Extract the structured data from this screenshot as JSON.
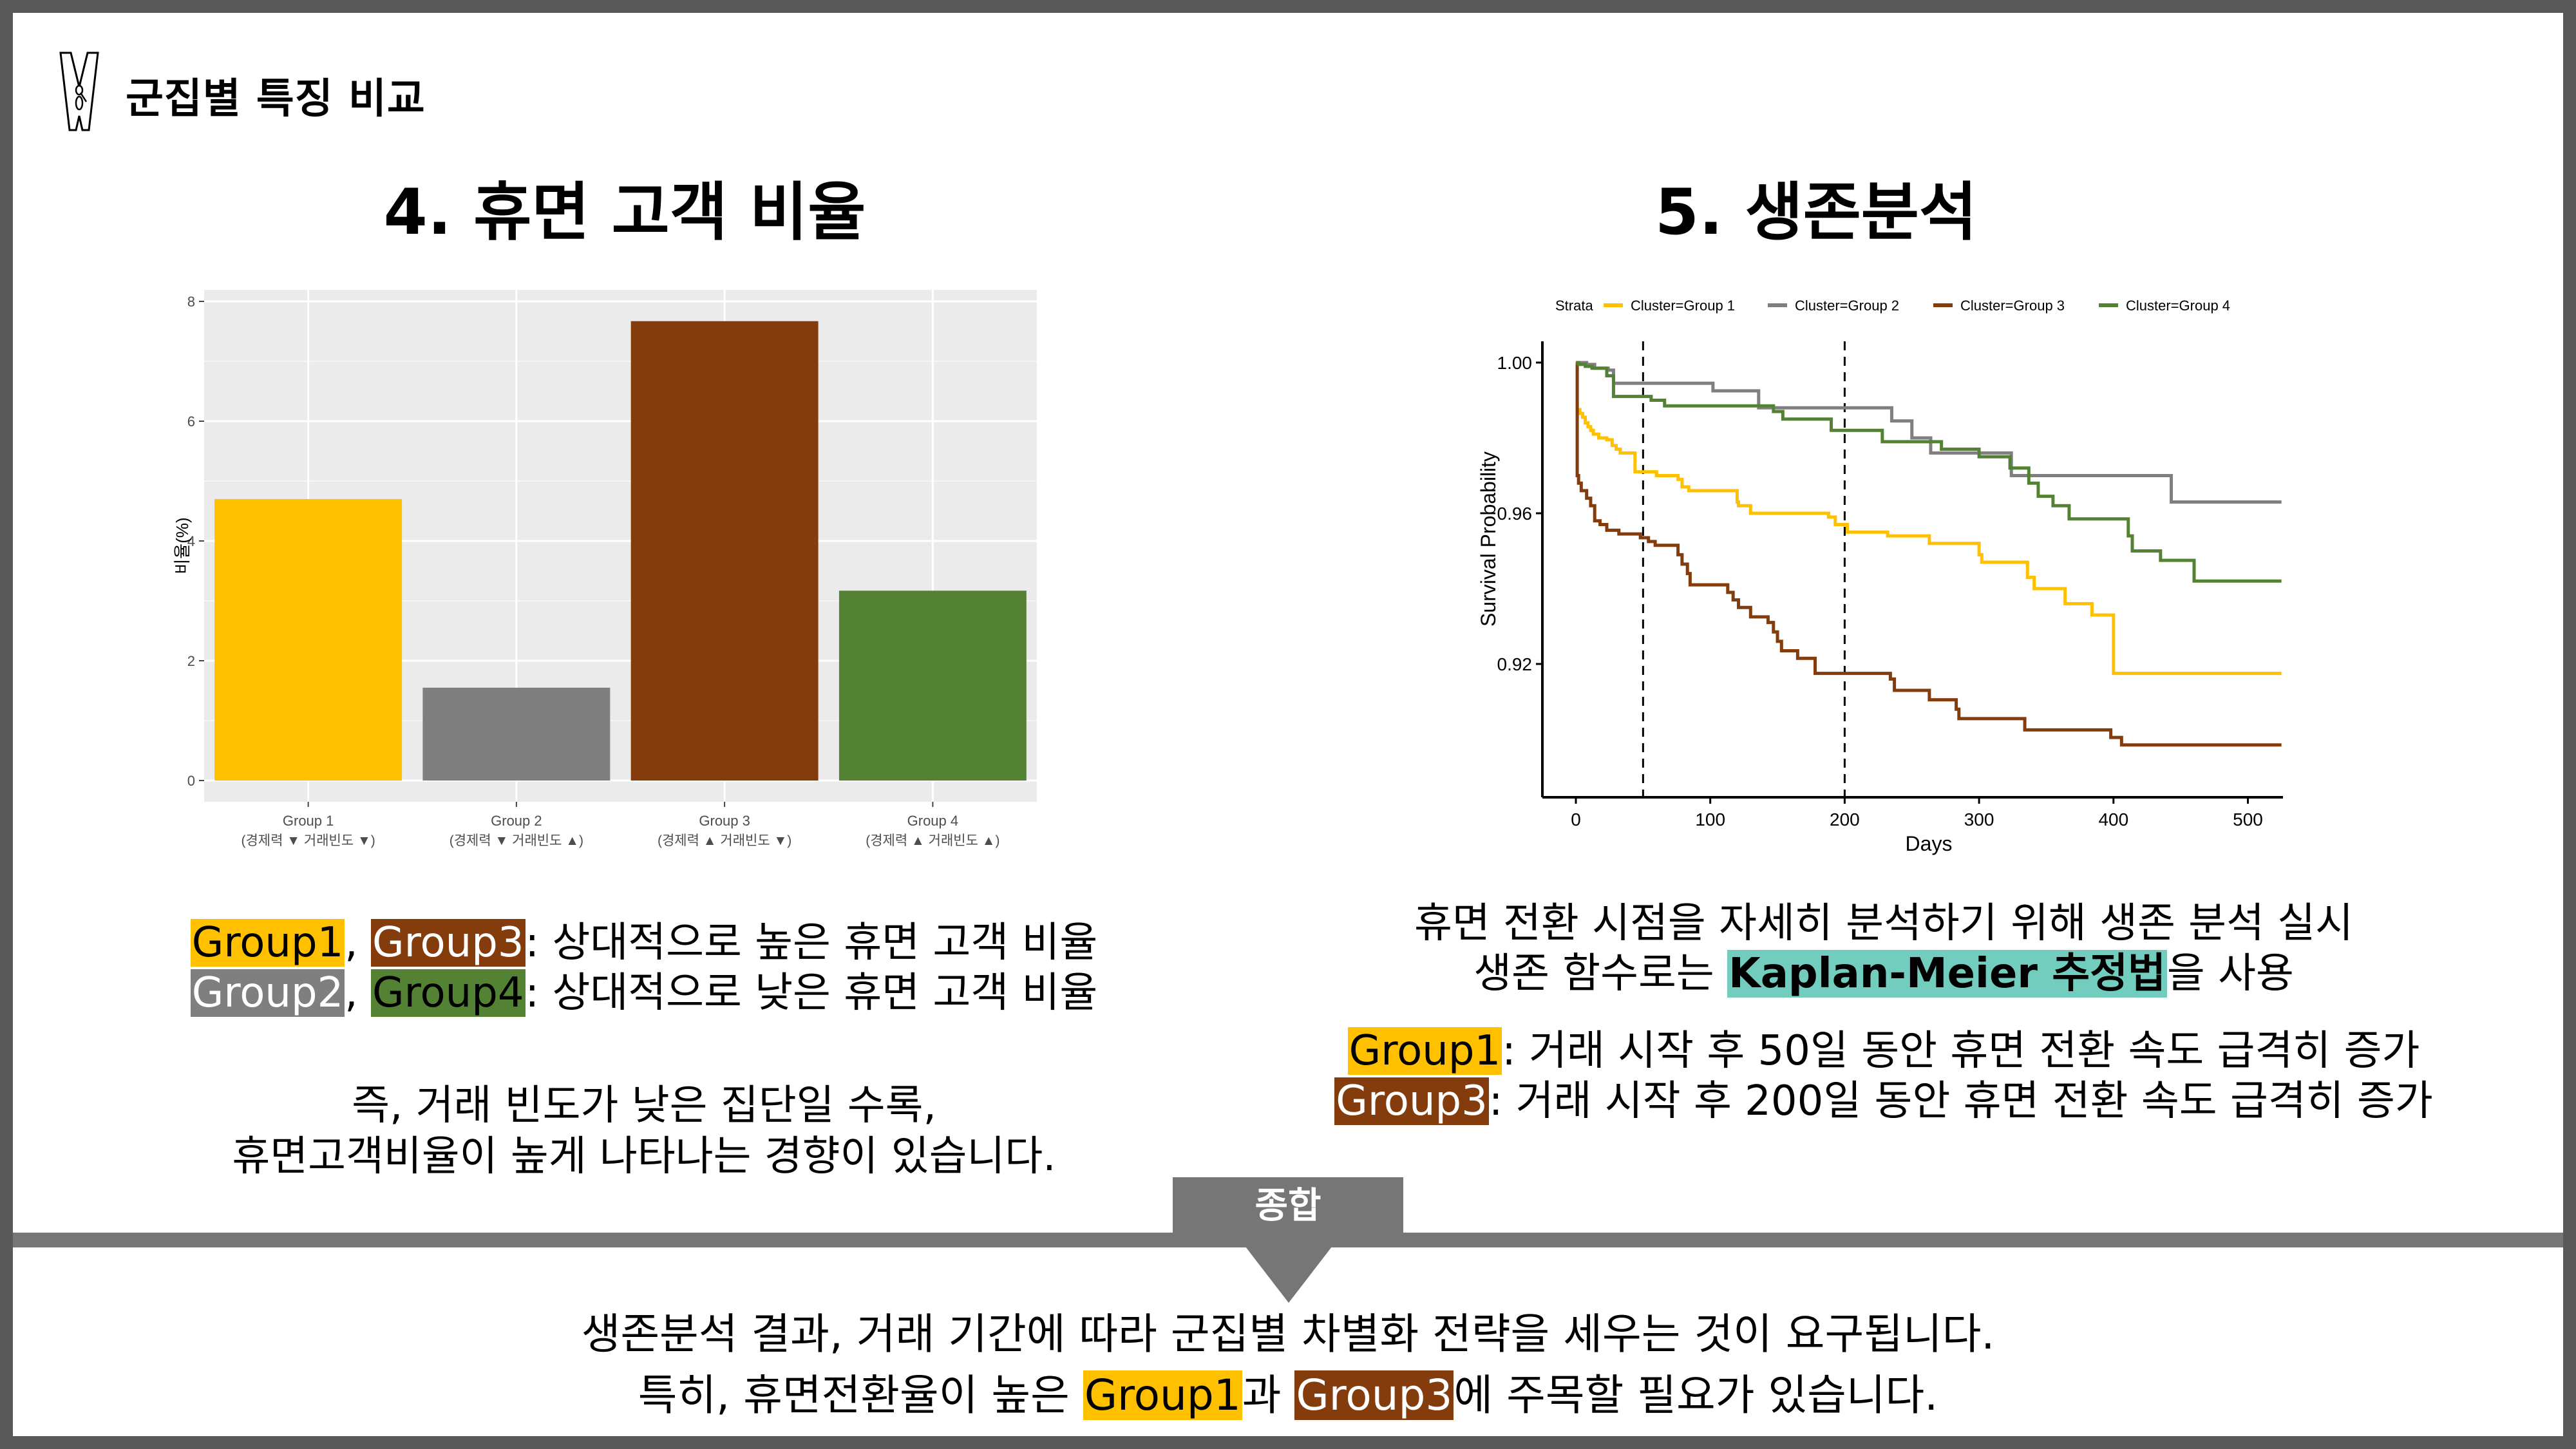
{
  "header": {
    "title": "군집별 특징 비교",
    "icon": "clothespin-icon"
  },
  "section4": {
    "title": "4. 휴면 고객 비율",
    "line1": {
      "g1": "Group1",
      "sep": ", ",
      "g3": "Group3",
      "text": ": 상대적으로 높은 휴면 고객 비율"
    },
    "line2": {
      "g2": "Group2",
      "sep": ", ",
      "g4": "Group4",
      "text": ": 상대적으로 낮은 휴면 고객 비율"
    },
    "summary1": "즉, 거래 빈도가 낮은 집단일 수록,",
    "summary2": "휴면고객비율이 높게 나타나는 경향이 있습니다."
  },
  "section5": {
    "title": "5. 생존분석",
    "line1": "휴면 전환 시점을 자세히 분석하기 위해 생존 분석 실시",
    "line2_pre": "생존 함수로는 ",
    "line2_hl": "Kaplan-Meier 추정법",
    "line2_post": "을 사용",
    "g1_label": "Group1",
    "g1_text": ": 거래 시작 후 50일 동안 휴면 전환 속도 급격히 증가",
    "g3_label": "Group3",
    "g3_text": ": 거래 시작 후 200일 동안 휴면 전환 속도 급격히 증가"
  },
  "summary": {
    "tab_label": "종합",
    "line1": "생존분석 결과, 거래 기간에 따라 군집별 차별화 전략을 세우는 것이 요구됩니다.",
    "line2_pre": "특히, 휴면전환율이 높은 ",
    "line2_g1": "Group1",
    "line2_mid": "과 ",
    "line2_g3": "Group3",
    "line2_post": "에 주목할 필요가 있습니다."
  },
  "colors": {
    "group1": "#FFC000",
    "group2": "#7F7F7F",
    "group3": "#843C0C",
    "group4": "#548235",
    "kaplan_highlight": "#72CDBF",
    "frame": "#595959",
    "separator": "#767676"
  },
  "chart_data": [
    {
      "type": "bar",
      "title": "",
      "xlabel": "",
      "ylabel": "비율(%)",
      "ylim": [
        0,
        8
      ],
      "yticks": [
        0,
        2,
        4,
        6,
        8
      ],
      "grid": true,
      "categories": [
        "Group 1",
        "Group 2",
        "Group 3",
        "Group 4"
      ],
      "category_sublabels": [
        "(경제력 ▼ 거래빈도 ▼)",
        "(경제력 ▼ 거래빈도 ▲)",
        "(경제력 ▲ 거래빈도 ▼)",
        "(경제력 ▲ 거래빈도 ▲)"
      ],
      "values": [
        4.7,
        1.55,
        7.67,
        3.17
      ],
      "colors": [
        "#FFC000",
        "#7F7F7F",
        "#843C0C",
        "#548235"
      ]
    },
    {
      "type": "line",
      "subtype": "kaplan-meier-step",
      "title": "",
      "xlabel": "Days",
      "ylabel": "Survival Probability",
      "xlim": [
        0,
        525
      ],
      "ylim": [
        0.88,
        1.005
      ],
      "xticks": [
        0,
        100,
        200,
        300,
        400,
        500
      ],
      "yticks": [
        0.92,
        0.96,
        1.0
      ],
      "ytick_labels": [
        "0.92",
        "0.96",
        "1.00"
      ],
      "vlines": [
        50,
        200
      ],
      "legend": {
        "title": "Strata",
        "position": "top",
        "entries": [
          "Cluster=Group 1",
          "Cluster=Group 2",
          "Cluster=Group 3",
          "Cluster=Group 4"
        ]
      },
      "series": [
        {
          "name": "Cluster=Group 1",
          "color": "#FFC000",
          "x": [
            0,
            1,
            3,
            5,
            7,
            9,
            11,
            13,
            17,
            23,
            27,
            30,
            33,
            44,
            60,
            76,
            79,
            84,
            103,
            120,
            121,
            130,
            188,
            193,
            202,
            232,
            263,
            300,
            302,
            336,
            341,
            364,
            384,
            400,
            525
          ],
          "y": [
            0.989,
            0.9875,
            0.9865,
            0.9855,
            0.984,
            0.983,
            0.982,
            0.981,
            0.98,
            0.9795,
            0.978,
            0.977,
            0.976,
            0.971,
            0.97,
            0.969,
            0.967,
            0.966,
            0.966,
            0.963,
            0.962,
            0.96,
            0.959,
            0.957,
            0.955,
            0.954,
            0.952,
            0.949,
            0.947,
            0.943,
            0.94,
            0.936,
            0.933,
            0.9175,
            0.9175
          ]
        },
        {
          "name": "Cluster=Group 2",
          "color": "#7F7F7F",
          "x": [
            0,
            8,
            14,
            24,
            28,
            102,
            136,
            235,
            250,
            264,
            324,
            443,
            525
          ],
          "y": [
            1.0,
            0.9995,
            0.9985,
            0.998,
            0.9945,
            0.9925,
            0.988,
            0.9845,
            0.98,
            0.976,
            0.97,
            0.963,
            0.963
          ],
          "_note": "x values mark step start"
        },
        {
          "name": "Cluster=Group 3",
          "color": "#843C0C",
          "x": [
            0,
            1,
            2,
            4,
            8,
            11,
            14,
            18,
            23,
            32,
            48,
            54,
            59,
            76,
            79,
            83,
            85,
            113,
            117,
            121,
            130,
            143,
            147,
            150,
            153,
            165,
            178,
            234,
            237,
            263,
            283,
            285,
            334,
            398,
            406,
            525
          ],
          "y": [
            1.0,
            0.97,
            0.968,
            0.966,
            0.964,
            0.962,
            0.958,
            0.957,
            0.9555,
            0.9545,
            0.9535,
            0.9525,
            0.9515,
            0.949,
            0.9465,
            0.944,
            0.941,
            0.939,
            0.937,
            0.935,
            0.9325,
            0.931,
            0.9285,
            0.926,
            0.9235,
            0.9215,
            0.9175,
            0.916,
            0.913,
            0.9105,
            0.908,
            0.9055,
            0.9025,
            0.9005,
            0.8985,
            0.8985
          ]
        },
        {
          "name": "Cluster=Group 4",
          "color": "#548235",
          "x": [
            0,
            2,
            7,
            12,
            23,
            28,
            56,
            66,
            147,
            154,
            190,
            228,
            272,
            300,
            323,
            337,
            344,
            355,
            367,
            411,
            414,
            435,
            460,
            525
          ],
          "y": [
            1.0,
            0.9995,
            0.999,
            0.9985,
            0.9965,
            0.991,
            0.99,
            0.9885,
            0.987,
            0.985,
            0.982,
            0.979,
            0.977,
            0.975,
            0.972,
            0.968,
            0.9645,
            0.962,
            0.9585,
            0.954,
            0.95,
            0.9475,
            0.942,
            0.942
          ]
        }
      ]
    }
  ]
}
